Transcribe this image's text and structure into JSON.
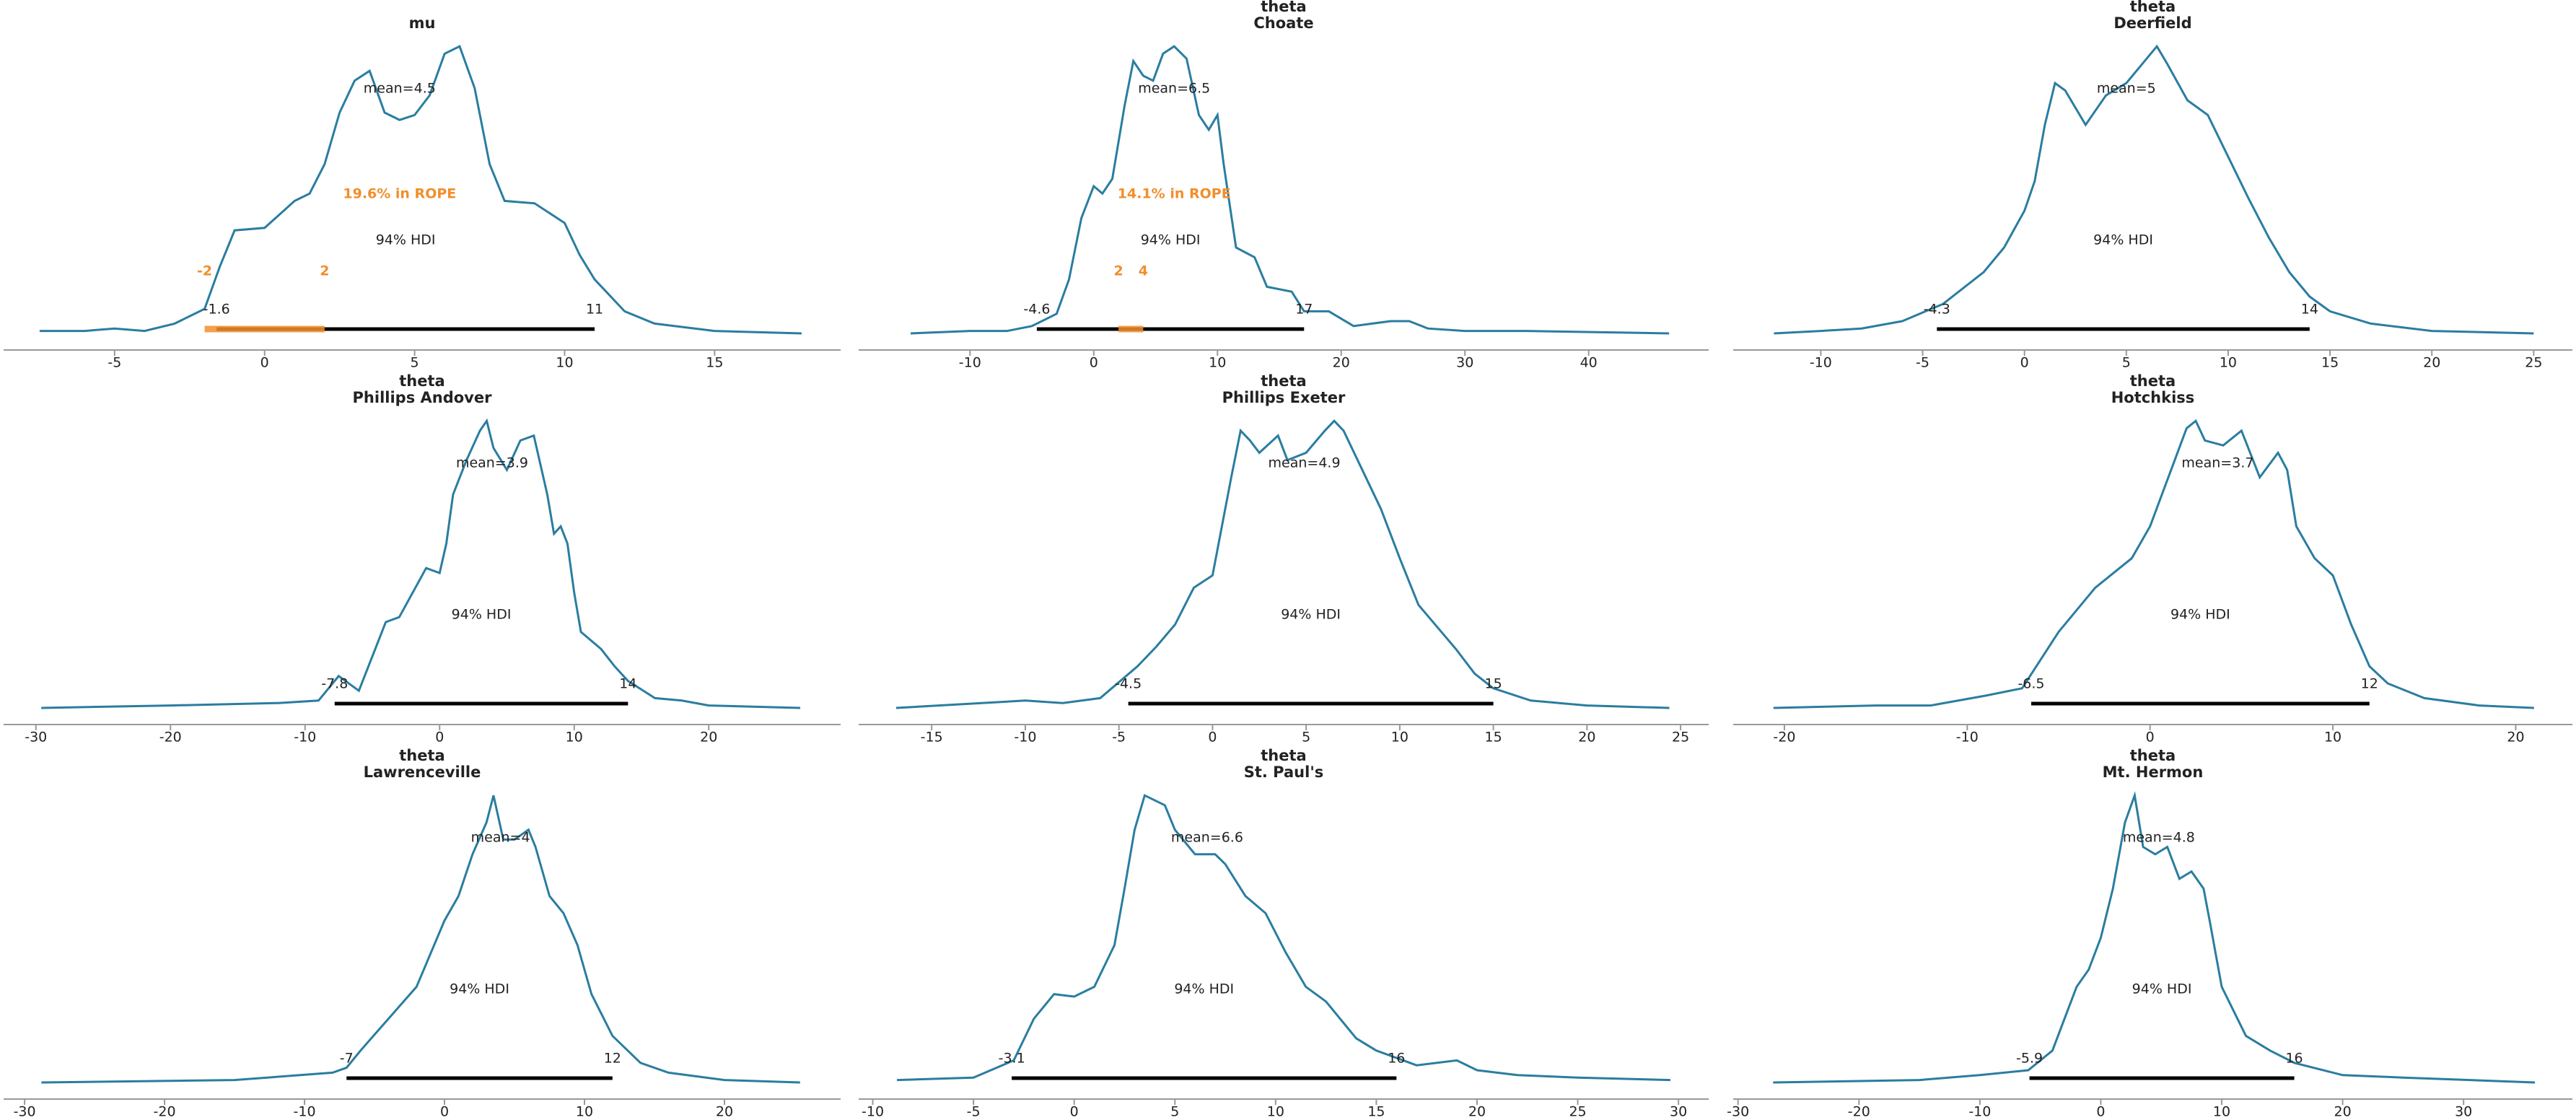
{
  "chart_data": [
    {
      "type": "density",
      "title": [
        "mu"
      ],
      "color": "#2a7da0",
      "x": [
        -7.5,
        -6,
        -5,
        -4,
        -3,
        -2,
        -1.5,
        -1,
        0,
        1,
        1.5,
        2,
        2.5,
        3,
        3.5,
        4,
        4.5,
        5,
        5.5,
        6,
        6.5,
        7,
        7.5,
        8,
        9,
        10,
        10.5,
        11,
        12,
        13,
        15,
        17.9
      ],
      "values": [
        0.001,
        0.001,
        0.002,
        0.001,
        0.004,
        0.01,
        0.027,
        0.042,
        0.043,
        0.054,
        0.057,
        0.069,
        0.09,
        0.103,
        0.107,
        0.09,
        0.087,
        0.089,
        0.097,
        0.114,
        0.117,
        0.1,
        0.069,
        0.054,
        0.053,
        0.045,
        0.032,
        0.022,
        0.009,
        0.004,
        0.001,
        0
      ],
      "xlim": [
        -8.7,
        19.2
      ],
      "xticks": [
        -5,
        0,
        5,
        10,
        15
      ],
      "ylim": [
        0,
        0.12
      ],
      "mean": 4.5,
      "mean_label": "mean=4.5",
      "hdi": [
        -1.6,
        11
      ],
      "hdi_label": "94% HDI",
      "rope": [
        -2,
        2
      ],
      "rope_label": "19.6% in ROPE",
      "rope_color": "#f28e2b"
    },
    {
      "type": "density",
      "title": [
        "theta",
        "Choate"
      ],
      "color": "#2a7da0",
      "x": [
        -14.8,
        -10,
        -7,
        -5,
        -3,
        -2,
        -1,
        0,
        0.7,
        1.5,
        2.5,
        3.2,
        4,
        4.8,
        5.6,
        6.5,
        7.5,
        8.5,
        9.3,
        10,
        10.5,
        11.5,
        13,
        14,
        16,
        17,
        19,
        21,
        24,
        25.5,
        27,
        30,
        35,
        46.5
      ],
      "values": [
        0,
        0.001,
        0.001,
        0.003,
        0.008,
        0.022,
        0.047,
        0.06,
        0.057,
        0.063,
        0.093,
        0.111,
        0.105,
        0.103,
        0.114,
        0.117,
        0.112,
        0.089,
        0.083,
        0.089,
        0.069,
        0.035,
        0.031,
        0.019,
        0.017,
        0.009,
        0.009,
        0.003,
        0.005,
        0.005,
        0.002,
        0.001,
        0.001,
        0
      ],
      "xlim": [
        -19.0,
        49.7
      ],
      "xticks": [
        -10,
        0,
        10,
        20,
        30,
        40
      ],
      "ylim": [
        0,
        0.12
      ],
      "mean": 6.5,
      "mean_label": "mean=6.5",
      "hdi": [
        -4.6,
        17
      ],
      "hdi_label": "94% HDI",
      "rope": [
        2,
        4
      ],
      "rope_label": "14.1% in ROPE",
      "rope_color": "#f28e2b"
    },
    {
      "type": "density",
      "title": [
        "theta",
        "Deerfield"
      ],
      "color": "#2a7da0",
      "x": [
        -12.3,
        -10,
        -8,
        -6,
        -4,
        -2,
        -1,
        0,
        0.5,
        1,
        1.5,
        2,
        3,
        4,
        5,
        6,
        6.5,
        7,
        8,
        9,
        10,
        11,
        12,
        13,
        14,
        15,
        17,
        20,
        25
      ],
      "values": [
        0,
        0.001,
        0.002,
        0.005,
        0.012,
        0.025,
        0.035,
        0.05,
        0.062,
        0.085,
        0.102,
        0.099,
        0.085,
        0.097,
        0.102,
        0.112,
        0.117,
        0.11,
        0.095,
        0.089,
        0.072,
        0.055,
        0.039,
        0.025,
        0.015,
        0.009,
        0.004,
        0.001,
        0
      ],
      "xlim": [
        -14.3,
        26.9
      ],
      "xticks": [
        -10,
        -5,
        0,
        5,
        10,
        15,
        20,
        25
      ],
      "ylim": [
        0,
        0.12
      ],
      "mean": 5,
      "mean_label": "mean=5",
      "hdi": [
        -4.3,
        14
      ],
      "hdi_label": "94% HDI"
    },
    {
      "type": "density",
      "title": [
        "theta",
        "Phillips Andover"
      ],
      "color": "#2a7da0",
      "x": [
        -29.6,
        -20,
        -12,
        -9,
        -7.5,
        -6,
        -4,
        -3,
        -2,
        -1,
        0,
        0.5,
        1,
        2,
        3,
        3.5,
        4,
        5,
        6,
        7,
        8,
        8.5,
        9,
        9.5,
        10,
        10.5,
        12,
        13,
        14,
        16,
        18,
        20,
        26.8
      ],
      "values": [
        0,
        0.001,
        0.002,
        0.003,
        0.013,
        0.007,
        0.035,
        0.037,
        0.047,
        0.057,
        0.055,
        0.067,
        0.087,
        0.101,
        0.113,
        0.117,
        0.106,
        0.097,
        0.109,
        0.111,
        0.087,
        0.071,
        0.074,
        0.067,
        0.047,
        0.031,
        0.024,
        0.017,
        0.011,
        0.004,
        0.003,
        0.001,
        0
      ],
      "xlim": [
        -32.4,
        29.8
      ],
      "xticks": [
        -30,
        -20,
        -10,
        0,
        10,
        20
      ],
      "ylim": [
        0,
        0.12
      ],
      "mean": 3.9,
      "mean_label": "mean=3.9",
      "hdi": [
        -7.8,
        14
      ],
      "hdi_label": "94% HDI"
    },
    {
      "type": "density",
      "title": [
        "theta",
        "Phillips Exeter"
      ],
      "color": "#2a7da0",
      "x": [
        -16.9,
        -10,
        -8,
        -6,
        -4,
        -3,
        -2,
        -1,
        0,
        1,
        1.5,
        2,
        2.5,
        3.5,
        4,
        5,
        6,
        6.5,
        7,
        8,
        9,
        10,
        11,
        12,
        13,
        14,
        15,
        17,
        20,
        24.4
      ],
      "values": [
        0,
        0.003,
        0.002,
        0.004,
        0.017,
        0.025,
        0.034,
        0.049,
        0.054,
        0.094,
        0.113,
        0.109,
        0.104,
        0.111,
        0.101,
        0.104,
        0.113,
        0.117,
        0.113,
        0.097,
        0.081,
        0.061,
        0.042,
        0.033,
        0.024,
        0.014,
        0.008,
        0.003,
        0.001,
        0
      ],
      "xlim": [
        -18.9,
        26.5
      ],
      "xticks": [
        -15,
        -10,
        -5,
        0,
        5,
        10,
        15,
        20,
        25
      ],
      "ylim": [
        0,
        0.12
      ],
      "mean": 4.9,
      "mean_label": "mean=4.9",
      "hdi": [
        -4.5,
        15
      ],
      "hdi_label": "94% HDI"
    },
    {
      "type": "density",
      "title": [
        "theta",
        "Hotchkiss"
      ],
      "color": "#2a7da0",
      "x": [
        -20.6,
        -15,
        -12,
        -9,
        -7,
        -5,
        -3,
        -1,
        0,
        1,
        2,
        2.5,
        3,
        4,
        5,
        6,
        7,
        7.5,
        8,
        9,
        10,
        11,
        12,
        13,
        15,
        18,
        21
      ],
      "values": [
        0,
        0.001,
        0.001,
        0.005,
        0.008,
        0.031,
        0.049,
        0.061,
        0.074,
        0.094,
        0.114,
        0.117,
        0.109,
        0.107,
        0.113,
        0.094,
        0.104,
        0.097,
        0.074,
        0.061,
        0.054,
        0.034,
        0.017,
        0.01,
        0.004,
        0.001,
        0
      ],
      "xlim": [
        -22.8,
        23.1
      ],
      "xticks": [
        -20,
        -10,
        0,
        10,
        20
      ],
      "ylim": [
        0,
        0.12
      ],
      "mean": 3.7,
      "mean_label": "mean=3.7",
      "hdi": [
        -6.5,
        12
      ],
      "hdi_label": "94% HDI"
    },
    {
      "type": "density",
      "title": [
        "theta",
        "Lawrenceville"
      ],
      "color": "#2a7da0",
      "x": [
        -28.8,
        -15,
        -8,
        -7,
        -6,
        -4,
        -2,
        0,
        1,
        2,
        3,
        3.5,
        4.2,
        5,
        6,
        6.5,
        7.5,
        8.5,
        9.5,
        10.5,
        12,
        14,
        16,
        20,
        25.4
      ],
      "values": [
        0,
        0.001,
        0.004,
        0.006,
        0.013,
        0.026,
        0.039,
        0.066,
        0.076,
        0.093,
        0.106,
        0.117,
        0.099,
        0.099,
        0.103,
        0.096,
        0.076,
        0.069,
        0.056,
        0.036,
        0.019,
        0.008,
        0.004,
        0.001,
        0
      ],
      "xlim": [
        -31.5,
        28.3
      ],
      "xticks": [
        -30,
        -20,
        -10,
        0,
        10,
        20
      ],
      "ylim": [
        0,
        0.12
      ],
      "mean": 4,
      "mean_label": "mean=4",
      "hdi": [
        -7,
        12
      ],
      "hdi_label": "94% HDI"
    },
    {
      "type": "density",
      "title": [
        "theta",
        "St. Paul's"
      ],
      "color": "#2a7da0",
      "x": [
        -8.8,
        -5,
        -3,
        -2,
        -1,
        0,
        1,
        2,
        2.5,
        3,
        3.5,
        4.5,
        5,
        6,
        7,
        7.5,
        8.5,
        9.5,
        10.5,
        11.5,
        12.5,
        14,
        15,
        17,
        19,
        20,
        22,
        25,
        29.6
      ],
      "values": [
        0.001,
        0.002,
        0.009,
        0.026,
        0.036,
        0.035,
        0.039,
        0.056,
        0.079,
        0.103,
        0.117,
        0.113,
        0.103,
        0.093,
        0.093,
        0.089,
        0.076,
        0.069,
        0.053,
        0.039,
        0.033,
        0.018,
        0.013,
        0.007,
        0.009,
        0.005,
        0.003,
        0.002,
        0.001
      ],
      "xlim": [
        -10.7,
        31.5
      ],
      "xticks": [
        -10,
        -5,
        0,
        5,
        10,
        15,
        20,
        25,
        30
      ],
      "ylim": [
        0,
        0.12
      ],
      "mean": 6.6,
      "mean_label": "mean=6.6",
      "hdi": [
        -3.1,
        16
      ],
      "hdi_label": "94% HDI"
    },
    {
      "type": "density",
      "title": [
        "theta",
        "Mt. Hermon"
      ],
      "color": "#2a7da0",
      "x": [
        -27.1,
        -15,
        -10,
        -6,
        -4,
        -2,
        -1,
        0,
        1,
        2,
        2.8,
        3.5,
        4.5,
        5.5,
        6.5,
        7.5,
        8.5,
        9,
        10,
        11,
        12,
        14,
        16,
        20,
        25,
        35.9
      ],
      "values": [
        0,
        0.001,
        0.003,
        0.005,
        0.013,
        0.039,
        0.046,
        0.059,
        0.079,
        0.106,
        0.117,
        0.096,
        0.093,
        0.096,
        0.083,
        0.086,
        0.079,
        0.066,
        0.039,
        0.029,
        0.019,
        0.013,
        0.008,
        0.003,
        0.002,
        0
      ],
      "xlim": [
        -30.4,
        39.0
      ],
      "xticks": [
        -30,
        -20,
        -10,
        0,
        10,
        20,
        30
      ],
      "ylim": [
        0,
        0.12
      ],
      "mean": 4.8,
      "mean_label": "mean=4.8",
      "hdi": [
        -5.9,
        16
      ],
      "hdi_label": "94% HDI"
    }
  ]
}
